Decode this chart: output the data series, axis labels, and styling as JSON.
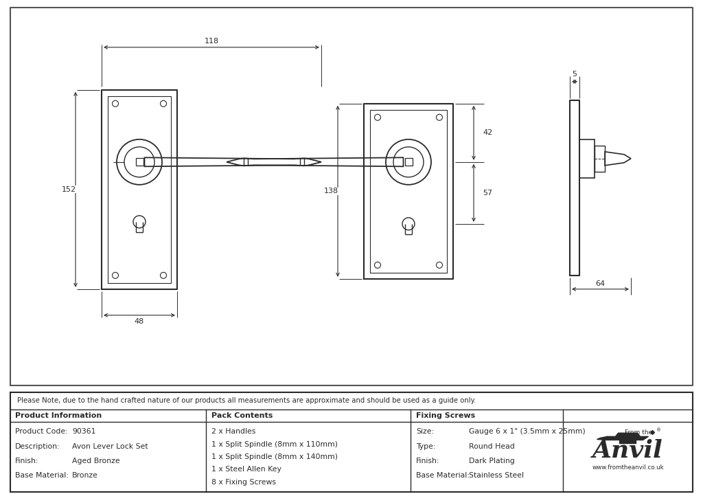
{
  "bg_color": "#ffffff",
  "line_color": "#2a2a2a",
  "dim_color": "#2a2a2a",
  "note_text": "Please Note, due to the hand crafted nature of our products all measurements are approximate and should be used as a guide only.",
  "product_info": {
    "header": "Product Information",
    "rows": [
      [
        "Product Code:",
        "90361"
      ],
      [
        "Description:",
        "Avon Lever Lock Set"
      ],
      [
        "Finish:",
        "Aged Bronze"
      ],
      [
        "Base Material:",
        "Bronze"
      ]
    ]
  },
  "pack_contents": {
    "header": "Pack Contents",
    "items": [
      "2 x Handles",
      "1 x Split Spindle (8mm x 110mm)",
      "1 x Split Spindle (8mm x 140mm)",
      "1 x Steel Allen Key",
      "8 x Fixing Screws"
    ]
  },
  "fixing_screws": {
    "header": "Fixing Screws",
    "rows": [
      [
        "Size:",
        "Gauge 6 x 1\" (3.5mm x 25mm)"
      ],
      [
        "Type:",
        "Round Head"
      ],
      [
        "Finish:",
        "Dark Plating"
      ],
      [
        "Base Material:",
        "Stainless Steel"
      ]
    ]
  },
  "dims": {
    "width_top": "118",
    "height_left": "152",
    "width_bottom": "48",
    "side_width": "64",
    "side_depth": "5",
    "front2_height": "138",
    "dim_42": "42",
    "dim_57": "57"
  }
}
